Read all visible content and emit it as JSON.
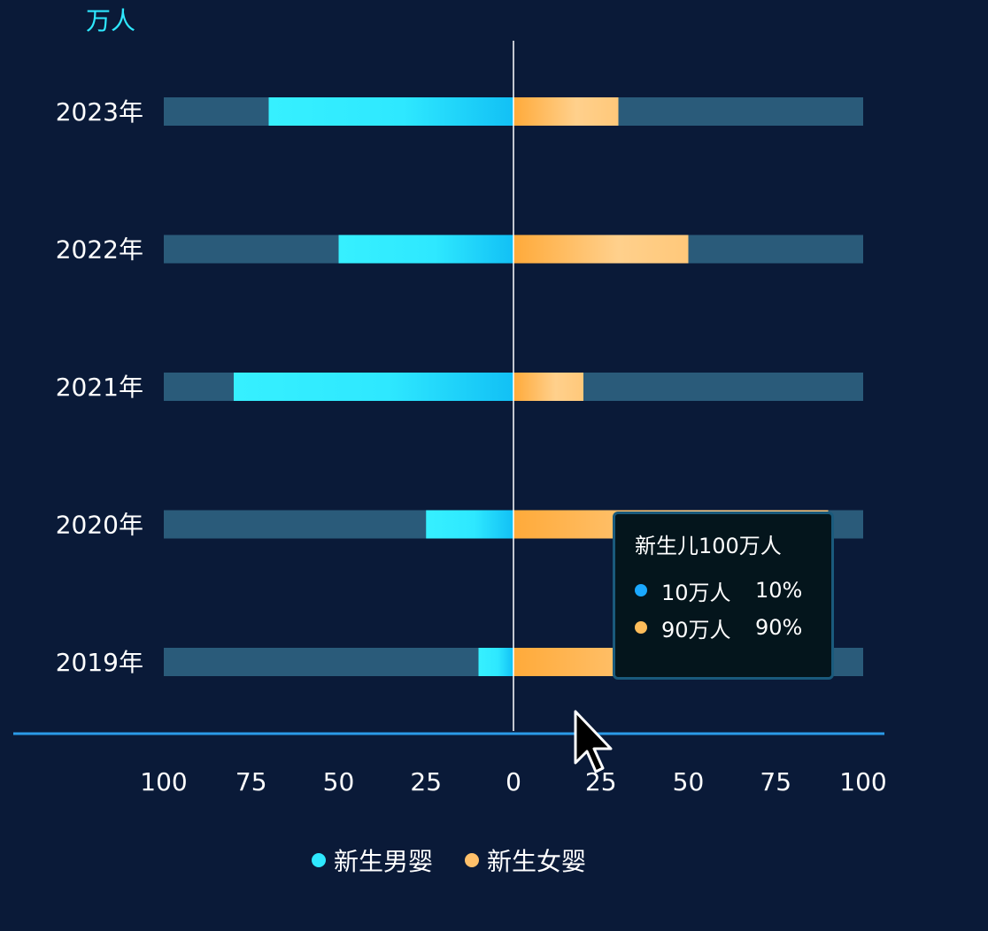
{
  "chart_data": {
    "type": "bar",
    "unit_label": "万人",
    "categories": [
      "2023年",
      "2022年",
      "2021年",
      "2020年",
      "2019年"
    ],
    "series": [
      {
        "name": "新生男婴",
        "values": [
          70,
          50,
          80,
          25,
          10
        ],
        "color": "#2ee8ff"
      },
      {
        "name": "新生女婴",
        "values": [
          30,
          50,
          20,
          90,
          90
        ],
        "color": "#ffc06a"
      }
    ],
    "xlim": [
      -100,
      100
    ],
    "ticks": [
      -100,
      -75,
      -50,
      -25,
      0,
      25,
      50,
      75,
      100
    ],
    "tick_labels": [
      "100",
      "75",
      "50",
      "25",
      "0",
      "25",
      "50",
      "75",
      "100"
    ],
    "background_bar_color": "#2a5b7a",
    "axis_color": "#2b9be8",
    "legend_position": "bottom"
  },
  "tooltip": {
    "title": "新生儿100万人",
    "rows": [
      {
        "value": "10万人",
        "percent": "10%",
        "color": "#1aa8ff"
      },
      {
        "value": "90万人",
        "percent": "90%",
        "color": "#ffbd5a"
      }
    ]
  }
}
